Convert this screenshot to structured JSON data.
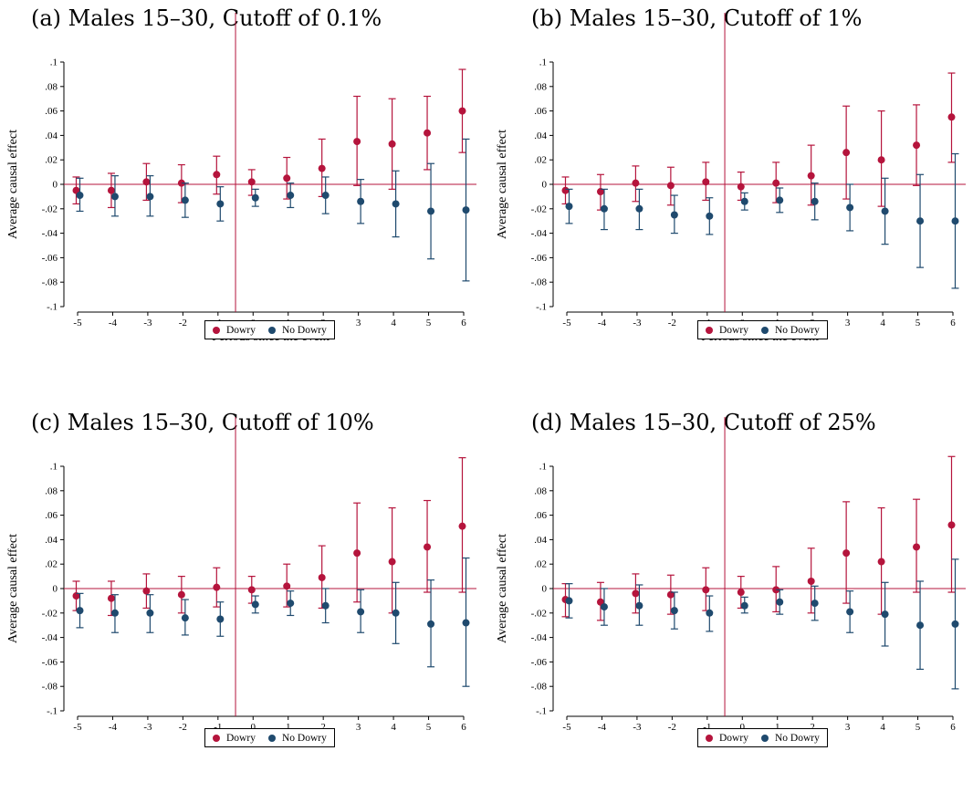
{
  "chart_data": [
    {
      "type": "scatter",
      "title": "(a) Males 15–30, Cutoff of 0.1%",
      "xlabel": "Periods since the event",
      "ylabel": "Average causal effect",
      "x": [
        -5,
        -4,
        -3,
        -2,
        -1,
        0,
        1,
        2,
        3,
        4,
        5,
        6
      ],
      "xlim": [
        -5,
        6
      ],
      "ylim": [
        -0.1,
        0.1
      ],
      "yticks": [
        0.1,
        0.08,
        0.06,
        0.04,
        0.02,
        0,
        -0.02,
        -0.04,
        -0.06,
        -0.08,
        -0.1
      ],
      "ytick_labels": [
        ".1",
        ".08",
        ".06",
        ".04",
        ".02",
        "0",
        "-.02",
        "-.04",
        "-.06",
        "-.08",
        "-.1"
      ],
      "xtick_labels": [
        "-5",
        "-4",
        "-3",
        "-2",
        "-1",
        "0",
        "1",
        "2",
        "3",
        "4",
        "5",
        "6"
      ],
      "event_line_x": -0.5,
      "reference_line_y": 0,
      "legend_position": "bottom-center",
      "series": [
        {
          "name": "Dowry",
          "color": "#b5143c",
          "values": [
            -0.005,
            -0.005,
            0.002,
            0.001,
            0.008,
            0.002,
            0.005,
            0.013,
            0.035,
            0.033,
            0.042,
            0.06
          ],
          "ci_low": [
            -0.016,
            -0.019,
            -0.013,
            -0.015,
            -0.008,
            -0.009,
            -0.012,
            -0.01,
            -0.001,
            -0.004,
            0.012,
            0.026
          ],
          "ci_high": [
            0.006,
            0.009,
            0.017,
            0.016,
            0.023,
            0.012,
            0.022,
            0.037,
            0.072,
            0.07,
            0.072,
            0.094
          ]
        },
        {
          "name": "No Dowry",
          "color": "#1f4a6e",
          "values": [
            -0.009,
            -0.01,
            -0.01,
            -0.013,
            -0.016,
            -0.011,
            -0.009,
            -0.009,
            -0.014,
            -0.016,
            -0.022,
            -0.021
          ],
          "ci_low": [
            -0.022,
            -0.026,
            -0.026,
            -0.027,
            -0.03,
            -0.018,
            -0.019,
            -0.024,
            -0.032,
            -0.043,
            -0.061,
            -0.079
          ],
          "ci_high": [
            0.005,
            0.007,
            0.007,
            0.001,
            -0.002,
            -0.004,
            0.001,
            0.006,
            0.004,
            0.011,
            0.017,
            0.037
          ]
        }
      ]
    },
    {
      "type": "scatter",
      "title": "(b) Males 15–30, Cutoff of 1%",
      "xlabel": "Periods since the event",
      "ylabel": "Average causal effect",
      "x": [
        -5,
        -4,
        -3,
        -2,
        -1,
        0,
        1,
        2,
        3,
        4,
        5,
        6
      ],
      "xlim": [
        -5,
        6
      ],
      "ylim": [
        -0.1,
        0.1
      ],
      "yticks": [
        0.1,
        0.08,
        0.06,
        0.04,
        0.02,
        0,
        -0.02,
        -0.04,
        -0.06,
        -0.08,
        -0.1
      ],
      "ytick_labels": [
        ".1",
        ".08",
        ".06",
        ".04",
        ".02",
        "0",
        "-.02",
        "-.04",
        "-.06",
        "-.08",
        "-.1"
      ],
      "xtick_labels": [
        "-5",
        "-4",
        "-3",
        "-2",
        "-1",
        "0",
        "1",
        "2",
        "3",
        "4",
        "5",
        "6"
      ],
      "event_line_x": -0.5,
      "reference_line_y": 0,
      "legend_position": "bottom-center",
      "series": [
        {
          "name": "Dowry",
          "color": "#b5143c",
          "values": [
            -0.005,
            -0.006,
            0.001,
            -0.001,
            0.002,
            -0.002,
            0.001,
            0.007,
            0.026,
            0.02,
            0.032,
            0.055
          ],
          "ci_low": [
            -0.016,
            -0.021,
            -0.014,
            -0.017,
            -0.013,
            -0.013,
            -0.015,
            -0.017,
            -0.012,
            -0.018,
            -0.001,
            0.018
          ],
          "ci_high": [
            0.006,
            0.008,
            0.015,
            0.014,
            0.018,
            0.01,
            0.018,
            0.032,
            0.064,
            0.06,
            0.065,
            0.091
          ]
        },
        {
          "name": "No Dowry",
          "color": "#1f4a6e",
          "values": [
            -0.018,
            -0.02,
            -0.02,
            -0.025,
            -0.026,
            -0.014,
            -0.013,
            -0.014,
            -0.019,
            -0.022,
            -0.03,
            -0.03
          ],
          "ci_low": [
            -0.032,
            -0.037,
            -0.037,
            -0.04,
            -0.041,
            -0.021,
            -0.023,
            -0.029,
            -0.038,
            -0.049,
            -0.068,
            -0.085
          ],
          "ci_high": [
            -0.004,
            -0.004,
            -0.004,
            -0.009,
            -0.011,
            -0.007,
            -0.003,
            0.001,
            0,
            0.005,
            0.008,
            0.025
          ]
        }
      ]
    },
    {
      "type": "scatter",
      "title": "(c) Males 15–30, Cutoff of 10%",
      "xlabel": "Periods since the event",
      "ylabel": "Average causal effect",
      "x": [
        -5,
        -4,
        -3,
        -2,
        -1,
        0,
        1,
        2,
        3,
        4,
        5,
        6
      ],
      "xlim": [
        -5,
        6
      ],
      "ylim": [
        -0.1,
        0.1
      ],
      "yticks": [
        0.1,
        0.08,
        0.06,
        0.04,
        0.02,
        0,
        -0.02,
        -0.04,
        -0.06,
        -0.08,
        -0.1
      ],
      "ytick_labels": [
        ".1",
        ".08",
        ".06",
        ".04",
        ".02",
        "0",
        "-.02",
        "-.04",
        "-.06",
        "-.08",
        "-.1"
      ],
      "xtick_labels": [
        "-5",
        "-4",
        "-3",
        "-2",
        "-1",
        "0",
        "1",
        "2",
        "3",
        "4",
        "5",
        "6"
      ],
      "event_line_x": -0.5,
      "reference_line_y": 0,
      "legend_position": "bottom-center",
      "series": [
        {
          "name": "Dowry",
          "color": "#b5143c",
          "values": [
            -0.006,
            -0.008,
            -0.002,
            -0.005,
            0.001,
            -0.001,
            0.002,
            0.009,
            0.029,
            0.022,
            0.034,
            0.051
          ],
          "ci_low": [
            -0.018,
            -0.022,
            -0.016,
            -0.02,
            -0.015,
            -0.012,
            -0.015,
            -0.016,
            -0.011,
            -0.02,
            -0.003,
            -0.003
          ],
          "ci_high": [
            0.006,
            0.006,
            0.012,
            0.01,
            0.017,
            0.01,
            0.02,
            0.035,
            0.07,
            0.066,
            0.072,
            0.107
          ]
        },
        {
          "name": "No Dowry",
          "color": "#1f4a6e",
          "values": [
            -0.018,
            -0.02,
            -0.02,
            -0.024,
            -0.025,
            -0.013,
            -0.012,
            -0.014,
            -0.019,
            -0.02,
            -0.029,
            -0.028
          ],
          "ci_low": [
            -0.032,
            -0.036,
            -0.036,
            -0.038,
            -0.039,
            -0.02,
            -0.022,
            -0.028,
            -0.036,
            -0.045,
            -0.064,
            -0.08
          ],
          "ci_high": [
            -0.004,
            -0.005,
            -0.005,
            -0.009,
            -0.011,
            -0.006,
            -0.002,
            0,
            -0.001,
            0.005,
            0.007,
            0.025
          ]
        }
      ]
    },
    {
      "type": "scatter",
      "title": "(d) Males 15–30, Cutoff of 25%",
      "xlabel": "Periods since the event",
      "ylabel": "Average causal effect",
      "x": [
        -5,
        -4,
        -3,
        -2,
        -1,
        0,
        1,
        2,
        3,
        4,
        5,
        6
      ],
      "xlim": [
        -5,
        6
      ],
      "ylim": [
        -0.1,
        0.1
      ],
      "yticks": [
        0.1,
        0.08,
        0.06,
        0.04,
        0.02,
        0,
        -0.02,
        -0.04,
        -0.06,
        -0.08,
        -0.1
      ],
      "ytick_labels": [
        ".1",
        ".08",
        ".06",
        ".04",
        ".02",
        "0",
        "-.02",
        "-.04",
        "-.06",
        "-.08",
        "-.1"
      ],
      "xtick_labels": [
        "-5",
        "-4",
        "-3",
        "-2",
        "-1",
        "0",
        "1",
        "2",
        "3",
        "4",
        "5",
        "6"
      ],
      "event_line_x": -0.5,
      "reference_line_y": 0,
      "legend_position": "bottom-center",
      "series": [
        {
          "name": "Dowry",
          "color": "#b5143c",
          "values": [
            -0.009,
            -0.011,
            -0.004,
            -0.005,
            -0.001,
            -0.003,
            -0.001,
            0.006,
            0.029,
            0.022,
            0.034,
            0.052
          ],
          "ci_low": [
            -0.023,
            -0.026,
            -0.02,
            -0.021,
            -0.018,
            -0.016,
            -0.019,
            -0.02,
            -0.012,
            -0.021,
            -0.003,
            -0.003
          ],
          "ci_high": [
            0.004,
            0.005,
            0.012,
            0.011,
            0.017,
            0.01,
            0.018,
            0.033,
            0.071,
            0.066,
            0.073,
            0.108
          ]
        },
        {
          "name": "No Dowry",
          "color": "#1f4a6e",
          "values": [
            -0.01,
            -0.015,
            -0.014,
            -0.018,
            -0.02,
            -0.014,
            -0.011,
            -0.012,
            -0.019,
            -0.021,
            -0.03,
            -0.029
          ],
          "ci_low": [
            -0.024,
            -0.03,
            -0.03,
            -0.033,
            -0.035,
            -0.02,
            -0.021,
            -0.026,
            -0.036,
            -0.047,
            -0.066,
            -0.082
          ],
          "ci_high": [
            0.004,
            0,
            0.003,
            -0.003,
            -0.006,
            -0.007,
            -0.001,
            0.002,
            -0.002,
            0.005,
            0.006,
            0.024
          ]
        }
      ]
    }
  ]
}
